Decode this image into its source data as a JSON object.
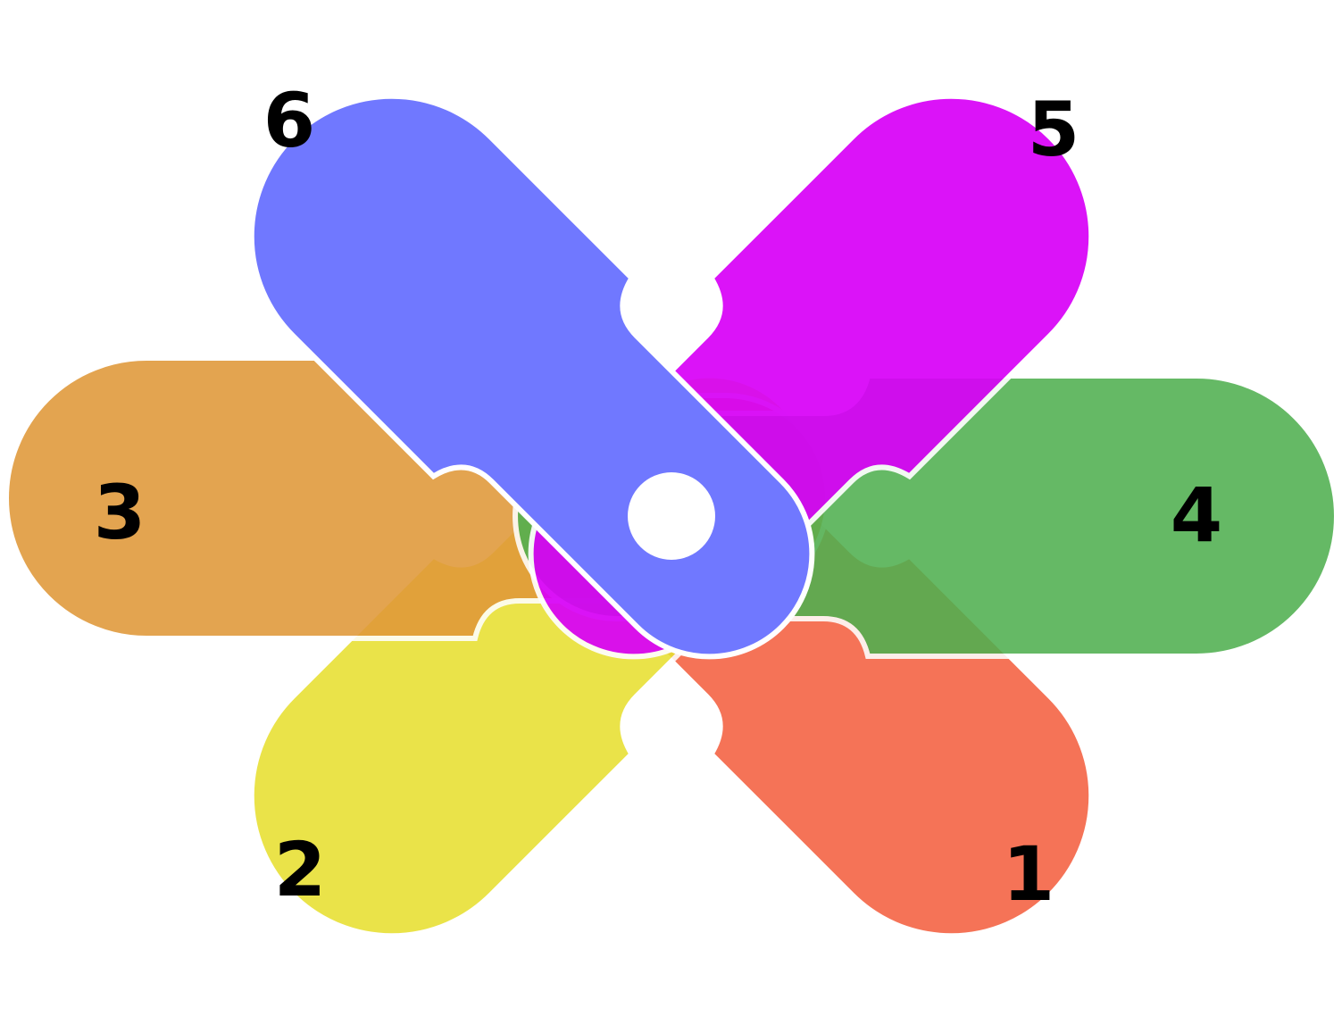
{
  "diagram": {
    "petals": [
      {
        "label": "1",
        "color": "#f46040"
      },
      {
        "label": "2",
        "color": "#e8e030"
      },
      {
        "label": "3",
        "color": "#e09838"
      },
      {
        "label": "4",
        "color": "#50b050"
      },
      {
        "label": "5",
        "color": "#d800f8"
      },
      {
        "label": "6",
        "color": "#7078ff"
      }
    ],
    "hub_color": "#ffffff",
    "outline_color": "#ffffff"
  }
}
